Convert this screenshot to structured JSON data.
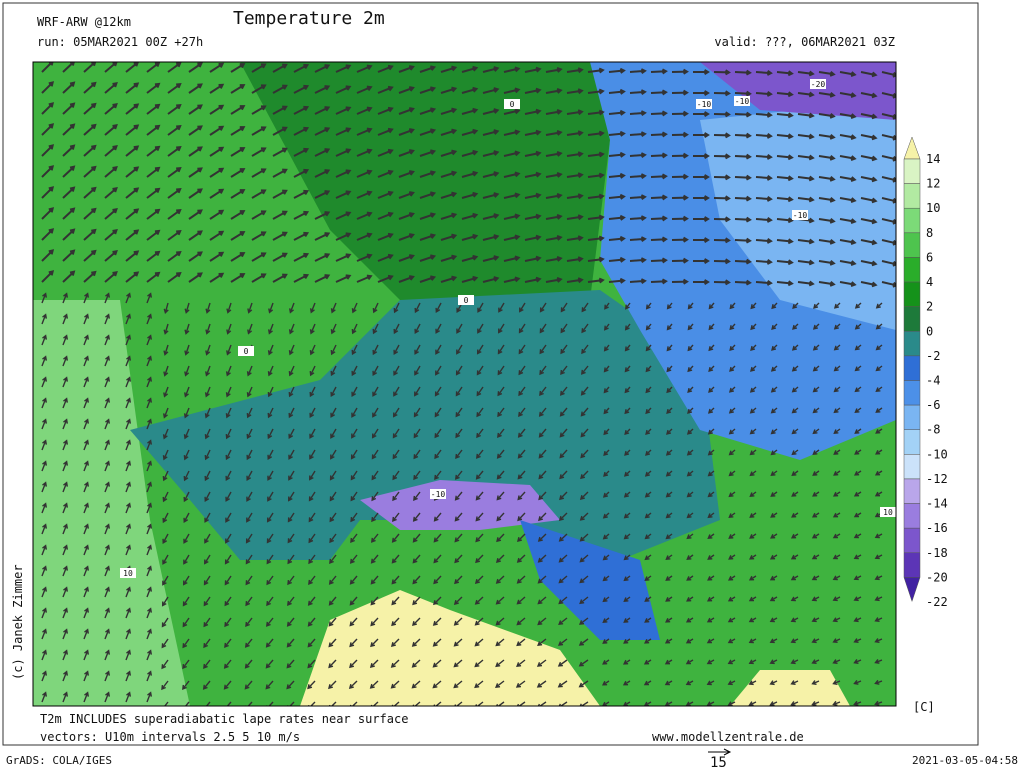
{
  "header": {
    "model": "WRF-ARW @12km",
    "title": "Temperature 2m",
    "run": "run: 05MAR2021 00Z +27h",
    "valid": "valid: ???, 06MAR2021 03Z"
  },
  "colorbar": {
    "labels": [
      14,
      12,
      10,
      8,
      6,
      4,
      2,
      0,
      -2,
      -4,
      -6,
      -8,
      -10,
      -12,
      -14,
      -16,
      -18,
      -20,
      -22
    ],
    "colors": [
      "#f6f2a8",
      "#d9f4c4",
      "#b2eaa2",
      "#7cda78",
      "#4ec44e",
      "#2aad2a",
      "#15921a",
      "#1d7a3a",
      "#2a8a8a",
      "#2f6fd6",
      "#4c90e8",
      "#7ab5f2",
      "#a3d2f6",
      "#cbe2fa",
      "#b9a6ea",
      "#9a7ddf",
      "#7c56cc",
      "#5c35b6",
      "#4122a2"
    ],
    "unit": "[C]"
  },
  "map_labels": [
    "-20",
    "-10",
    "-10",
    "-10",
    "-10",
    "0",
    "0",
    "0",
    "10",
    "10"
  ],
  "credit": "(c) Janek Zimmer",
  "footer": {
    "note": "T2m INCLUDES superadiabatic lape rates near surface",
    "vectors": "vectors: U10m intervals 2.5 5 10 m/s",
    "site": "www.modellzentrale.de",
    "grads": "GrADS: COLA/IGES",
    "ref_vector": "15",
    "timestamp": "2021-03-05-04:58"
  }
}
